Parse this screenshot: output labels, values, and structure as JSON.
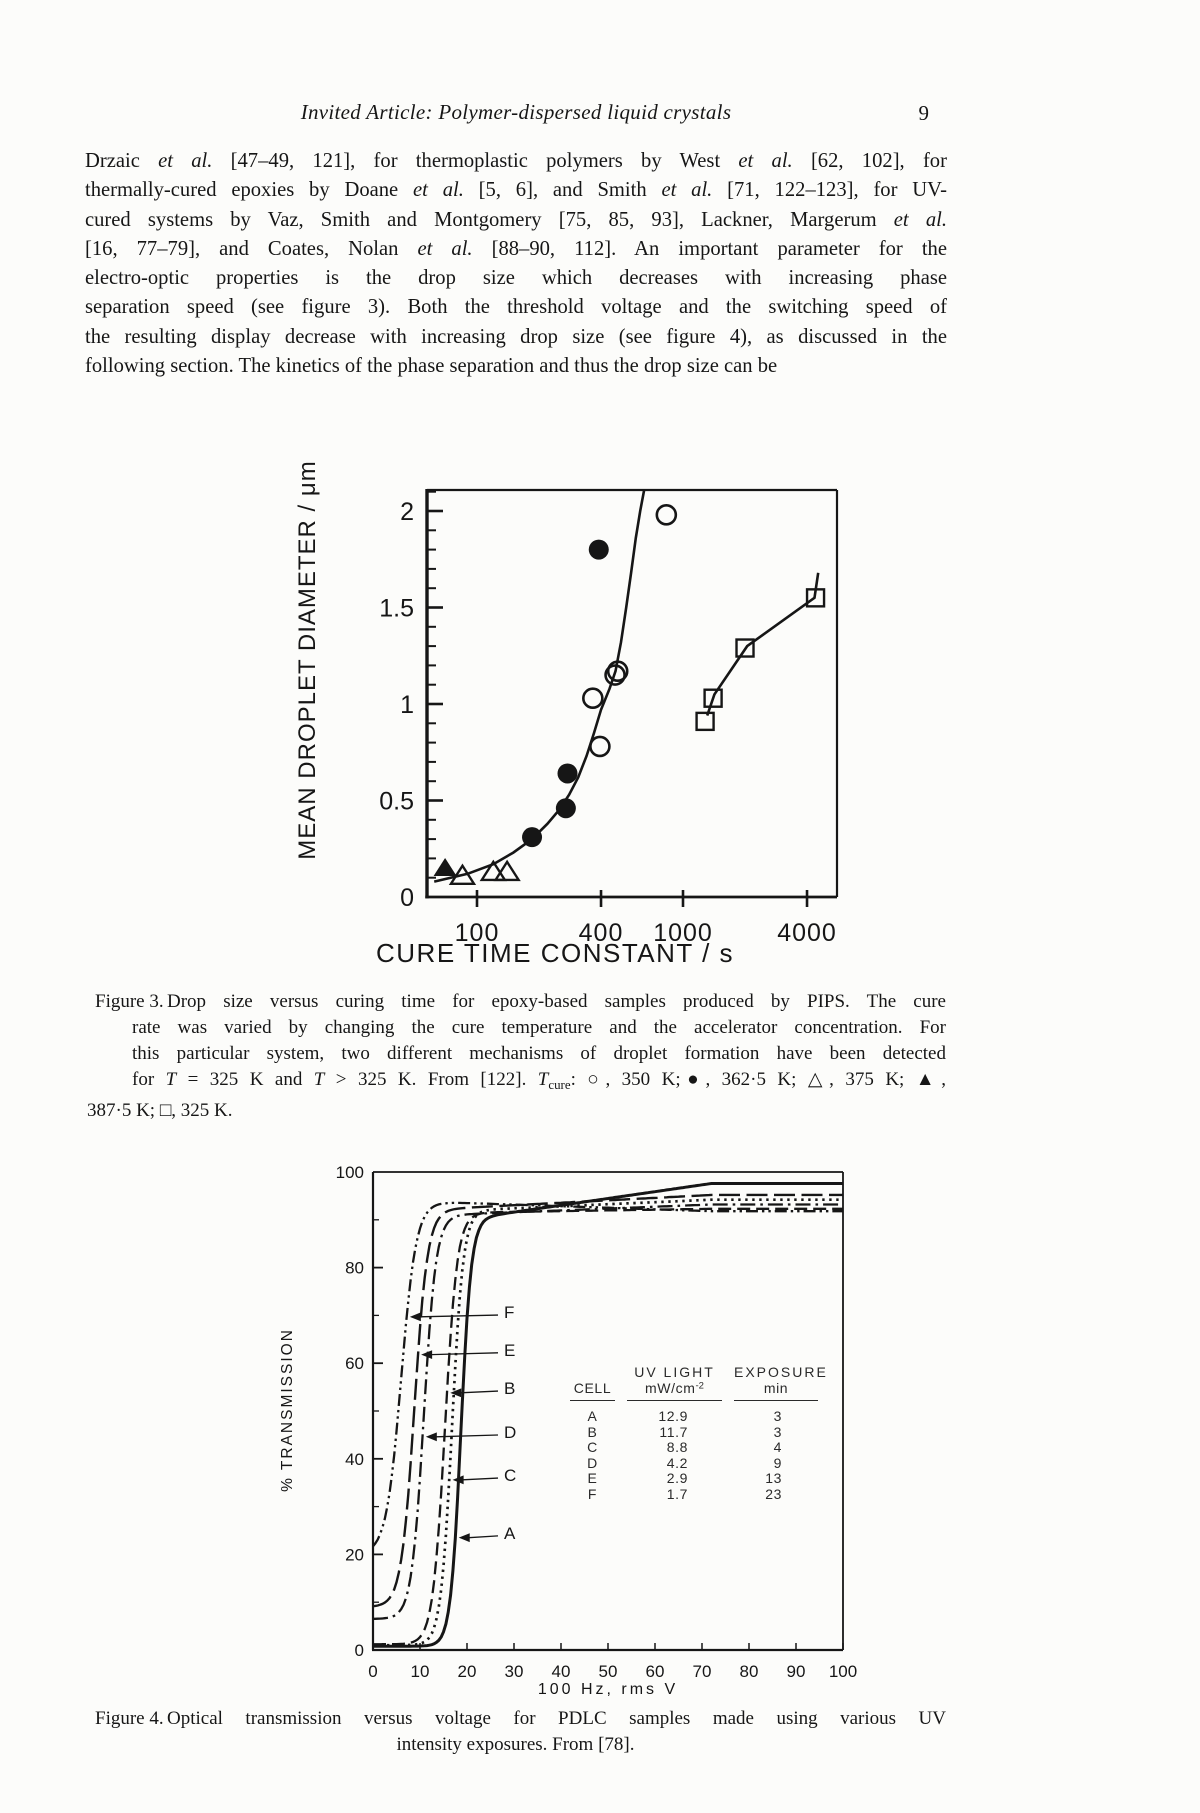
{
  "page": {
    "header": {
      "running_title": "Invited Article: Polymer-dispersed liquid crystals",
      "page_number": "9"
    },
    "paragraph_lines": [
      [
        {
          "t": "Drzaic "
        },
        {
          "t": "et al.",
          "i": 1
        },
        {
          "t": " [47–49, 121], for thermoplastic polymers by West "
        },
        {
          "t": "et al.",
          "i": 1
        },
        {
          "t": " [62, 102], for"
        }
      ],
      [
        {
          "t": "thermally-cured epoxies by Doane "
        },
        {
          "t": "et al.",
          "i": 1
        },
        {
          "t": " [5, 6], and Smith "
        },
        {
          "t": "et al.",
          "i": 1
        },
        {
          "t": " [71, 122–123], for UV-"
        }
      ],
      [
        {
          "t": "cured systems by Vaz, Smith and Montgomery [75, 85, 93], Lackner, Margerum "
        },
        {
          "t": "et al.",
          "i": 1
        }
      ],
      [
        {
          "t": "[16, 77–79], and Coates, Nolan "
        },
        {
          "t": "et al.",
          "i": 1
        },
        {
          "t": " [88–90, 112]. An important parameter for the"
        }
      ],
      [
        {
          "t": "electro-optic properties is the drop size which decreases with increasing phase"
        }
      ],
      [
        {
          "t": "separation speed (see figure 3). Both the threshold voltage and the switching speed of"
        }
      ],
      [
        {
          "t": "the resulting display decrease with increasing drop size (see figure 4), as discussed in the"
        }
      ],
      [
        {
          "t": "following section. The kinetics of the phase separation and thus the drop size can be"
        }
      ]
    ],
    "figure3_caption": {
      "label": "Figure 3.",
      "line1": [
        {
          "t": "Drop size versus curing time for epoxy-based samples produced by PIPS. The cure"
        }
      ],
      "mid_lines": [
        [
          {
            "t": "rate was varied by changing the cure temperature and the accelerator concentration. For"
          }
        ],
        [
          {
            "t": "this particular system, two different mechanisms of droplet formation have been detected"
          }
        ],
        [
          {
            "t": "for "
          },
          {
            "t": "T",
            "i": 1
          },
          {
            "t": " = 325 K and "
          },
          {
            "t": "T",
            "i": 1
          },
          {
            "t": " > 325 K. From [122]. "
          },
          {
            "t": "T",
            "i": 1
          },
          {
            "t": "cure",
            "sub": 1
          },
          {
            "t": ": ○, 350 K;●, 362·5 K; △, 375 K; ▲,"
          }
        ]
      ],
      "last_line": [
        {
          "t": "387·5 K; □, 325 K."
        }
      ]
    },
    "figure4_caption": {
      "label": "Figure 4.",
      "line1": "Optical transmission versus voltage for PDLC samples made using various UV",
      "line2": "intensity exposures. From [78]."
    }
  },
  "chart_data": [
    {
      "id": "figure3",
      "type": "scatter",
      "xlabel": "CURE TIME CONSTANT / s",
      "ylabel": "MEAN DROPLET DIAMETER / μm",
      "x_scale": "log",
      "xlim": [
        57,
        5560
      ],
      "ylim": [
        0,
        2.11
      ],
      "x_ticks": [
        {
          "v": 100,
          "label": "100"
        },
        {
          "v": 400,
          "label": "400"
        },
        {
          "v": 1000,
          "label": "1000"
        },
        {
          "v": 4000,
          "label": "4000"
        }
      ],
      "y_ticks": [
        {
          "v": 0,
          "label": "0"
        },
        {
          "v": 0.5,
          "label": "0.5"
        },
        {
          "v": 1,
          "label": "1"
        },
        {
          "v": 1.5,
          "label": "1.5"
        },
        {
          "v": 2,
          "label": "2"
        }
      ],
      "series": [
        {
          "name": "350 K",
          "marker": "circle-open",
          "points": [
            [
              365,
              1.03
            ],
            [
              395,
              0.78
            ],
            [
              468,
              1.15
            ],
            [
              482,
              1.17
            ],
            [
              830,
              1.98
            ]
          ]
        },
        {
          "name": "362.5 K",
          "marker": "circle-filled",
          "points": [
            [
              185,
              0.31
            ],
            [
              270,
              0.46
            ],
            [
              275,
              0.64
            ],
            [
              390,
              1.8
            ]
          ]
        },
        {
          "name": "375 K",
          "marker": "triangle-open",
          "points": [
            [
              85,
              0.11
            ],
            [
              120,
              0.13
            ],
            [
              140,
              0.13
            ]
          ]
        },
        {
          "name": "387.5 K",
          "marker": "triangle-filled",
          "points": [
            [
              70,
              0.15
            ]
          ]
        },
        {
          "name": "325 K",
          "marker": "square-open",
          "points": [
            [
              1280,
              0.91
            ],
            [
              1400,
              1.03
            ],
            [
              2000,
              1.29
            ],
            [
              4400,
              1.55
            ]
          ]
        }
      ],
      "curves": [
        {
          "name": "high-temp-mechanism",
          "points": [
            [
              62,
              0.08
            ],
            [
              90,
              0.12
            ],
            [
              120,
              0.17
            ],
            [
              150,
              0.23
            ],
            [
              185,
              0.3
            ],
            [
              220,
              0.38
            ],
            [
              250,
              0.45
            ],
            [
              280,
              0.53
            ],
            [
              310,
              0.62
            ],
            [
              340,
              0.73
            ],
            [
              370,
              0.85
            ],
            [
              400,
              0.97
            ],
            [
              440,
              1.08
            ],
            [
              470,
              1.17
            ],
            [
              500,
              1.32
            ],
            [
              530,
              1.5
            ],
            [
              560,
              1.68
            ],
            [
              590,
              1.86
            ],
            [
              620,
              2.0
            ],
            [
              648,
              2.11
            ]
          ]
        },
        {
          "name": "low-temp-mechanism",
          "points": [
            [
              1310,
              0.94
            ],
            [
              1420,
              1.05
            ],
            [
              2050,
              1.3
            ],
            [
              4350,
              1.55
            ],
            [
              4530,
              1.68
            ]
          ]
        }
      ]
    },
    {
      "id": "figure4",
      "type": "line",
      "xlabel": "100 Hz, rms V",
      "ylabel": "% TRANSMISSION",
      "xlim": [
        0,
        100
      ],
      "ylim": [
        0,
        100
      ],
      "x_ticks": [
        {
          "v": 0,
          "label": "0"
        },
        {
          "v": 10,
          "label": "10"
        },
        {
          "v": 20,
          "label": "20"
        },
        {
          "v": 30,
          "label": "30"
        },
        {
          "v": 40,
          "label": "40"
        },
        {
          "v": 50,
          "label": "50"
        },
        {
          "v": 60,
          "label": "60"
        },
        {
          "v": 70,
          "label": "70"
        },
        {
          "v": 80,
          "label": "80"
        },
        {
          "v": 90,
          "label": "90"
        },
        {
          "v": 100,
          "label": "100"
        }
      ],
      "y_ticks": [
        {
          "v": 0,
          "label": "0"
        },
        {
          "v": 20,
          "label": "20"
        },
        {
          "v": 40,
          "label": "40"
        },
        {
          "v": 60,
          "label": "60"
        },
        {
          "v": 80,
          "label": "80"
        },
        {
          "v": 100,
          "label": "100"
        }
      ],
      "series": [
        {
          "name": "A",
          "style": "solid",
          "base": 0.8,
          "vt": 18.7,
          "w": 1.1,
          "plateau": 90.5,
          "end": 97.6
        },
        {
          "name": "B",
          "style": "dash",
          "base": 1.2,
          "vt": 15.3,
          "w": 1.3,
          "plateau": 91.5,
          "end": 92.3
        },
        {
          "name": "C",
          "style": "dot",
          "base": 1.0,
          "vt": 16.8,
          "w": 1.2,
          "plateau": 92.0,
          "end": 94.2
        },
        {
          "name": "D",
          "style": "dashdot",
          "base": 6.5,
          "vt": 10.8,
          "w": 1.3,
          "plateau": 91.0,
          "end": 93.2
        },
        {
          "name": "E",
          "style": "longdash",
          "base": 9.0,
          "vt": 8.8,
          "w": 1.4,
          "plateau": 92.2,
          "end": 95.2
        },
        {
          "name": "F",
          "style": "dashdotdot",
          "base": 20.0,
          "vt": 6.0,
          "w": 1.6,
          "plateau": 93.8,
          "end": 91.8
        }
      ],
      "curve_labels": [
        {
          "name": "F",
          "y_pct": 70.7
        },
        {
          "name": "E",
          "y_pct": 62.8
        },
        {
          "name": "B",
          "y_pct": 54.8
        },
        {
          "name": "D",
          "y_pct": 45.6
        },
        {
          "name": "C",
          "y_pct": 36.6
        },
        {
          "name": "A",
          "y_pct": 24.5
        }
      ],
      "inset_table": {
        "col1_header": "CELL",
        "col2_header": "UV LIGHT",
        "col2_unit_base": "mW/cm",
        "col2_unit_sup": "-2",
        "col3_header": "EXPOSURE",
        "col3_unit": "min",
        "rows": [
          [
            "A",
            "12.9",
            "3"
          ],
          [
            "B",
            "11.7",
            "3"
          ],
          [
            "C",
            "8.8",
            "4"
          ],
          [
            "D",
            "4.2",
            "9"
          ],
          [
            "E",
            "2.9",
            "13"
          ],
          [
            "F",
            "1.7",
            "23"
          ]
        ]
      }
    }
  ]
}
